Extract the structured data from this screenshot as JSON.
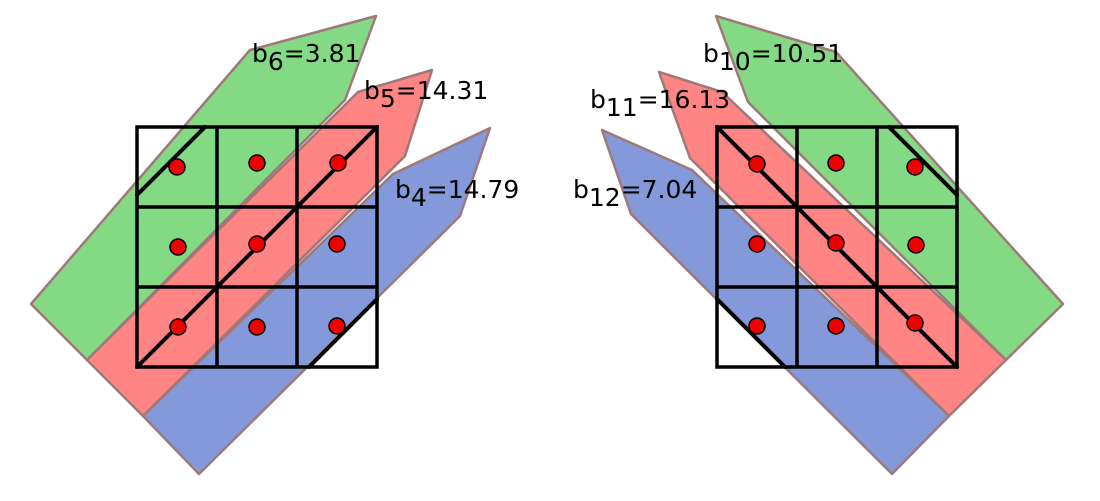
{
  "colors": {
    "green_band": "#84da84",
    "red_band": "#ff8484",
    "blue_band": "#8499da",
    "band_border": "#a07878",
    "grid": "#000000",
    "dot": "#ee0000"
  },
  "panels": [
    {
      "id": "left",
      "grid": "3x3",
      "bands": [
        {
          "color": "green",
          "label": {
            "var": "b",
            "index": "6",
            "value": "=3.81"
          }
        },
        {
          "color": "red",
          "label": {
            "var": "b",
            "index": "5",
            "value": "=14.31"
          }
        },
        {
          "color": "blue",
          "label": {
            "var": "b",
            "index": "4",
            "value": "=14.79"
          }
        }
      ]
    },
    {
      "id": "right",
      "grid": "3x3",
      "bands": [
        {
          "color": "green",
          "label": {
            "var": "b",
            "index": "10",
            "value": "=10.51"
          }
        },
        {
          "color": "red",
          "label": {
            "var": "b",
            "index": "11",
            "value": "=16.13"
          }
        },
        {
          "color": "blue",
          "label": {
            "var": "b",
            "index": "12",
            "value": "=7.04"
          }
        }
      ]
    }
  ]
}
